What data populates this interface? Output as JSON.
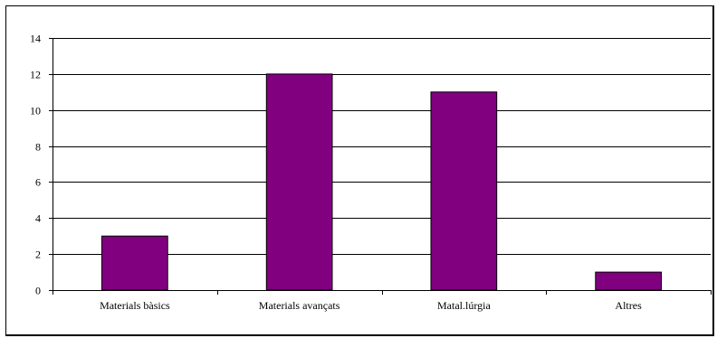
{
  "chart_data": {
    "type": "bar",
    "categories": [
      "Materials bàsics",
      "Materials avançats",
      "Matal.lúrgia",
      "Altres"
    ],
    "values": [
      3,
      12,
      11,
      1
    ],
    "title": "",
    "xlabel": "",
    "ylabel": "",
    "ylim": [
      0,
      14
    ],
    "yticks": [
      0,
      2,
      4,
      6,
      8,
      10,
      12,
      14
    ],
    "grid": true,
    "legend": "none",
    "bar_color": "#800080",
    "bar_edge_color": "#000000"
  }
}
